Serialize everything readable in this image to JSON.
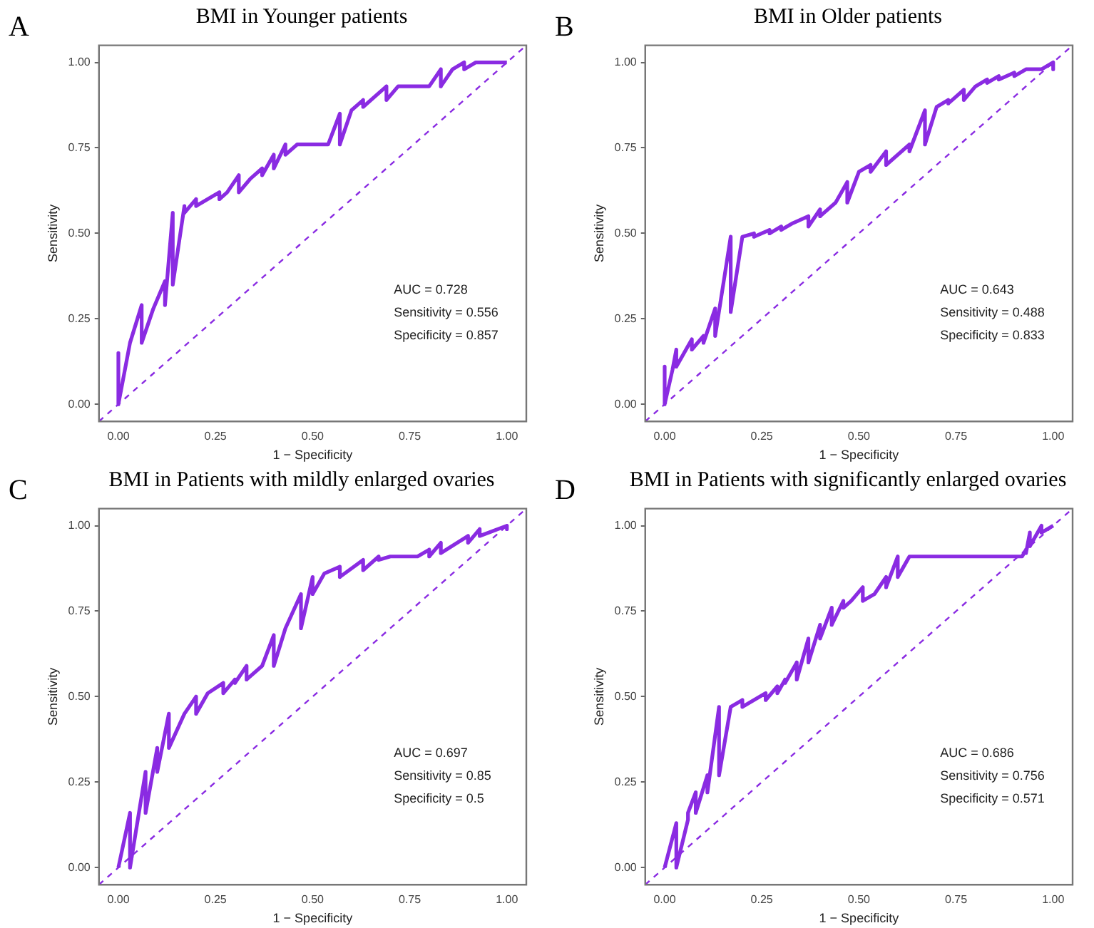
{
  "chart_data": [
    {
      "type": "line",
      "title": "BMI in Younger patients",
      "xlabel": "1 − Specificity",
      "ylabel": "Sensitivity",
      "annotations": [
        "A",
        "AUC = 0.728",
        "Sensitivity = 0.556",
        "Specificity = 0.857"
      ],
      "xlim": [
        -0.05,
        1.05
      ],
      "ylim": [
        -0.05,
        1.05
      ],
      "xticks": [
        {
          "value": 0,
          "label": "0.00"
        },
        {
          "value": 0.25,
          "label": "0.25"
        },
        {
          "value": 0.5,
          "label": "0.50"
        },
        {
          "value": 0.75,
          "label": "0.75"
        },
        {
          "value": 1,
          "label": "1.00"
        }
      ],
      "yticks": [
        {
          "value": 0,
          "label": "0.00"
        },
        {
          "value": 0.25,
          "label": "0.25"
        },
        {
          "value": 0.5,
          "label": "0.50"
        },
        {
          "value": 0.75,
          "label": "0.75"
        },
        {
          "value": 1,
          "label": "1.00"
        }
      ],
      "series": [
        {
          "color": "#8a2be2",
          "x": [
            0,
            0,
            0.03,
            0.03,
            0.06,
            0.06,
            0.09,
            0.12,
            0.12,
            0.14,
            0.14,
            0.17,
            0.17,
            0.2,
            0.2,
            0.26,
            0.26,
            0.28,
            0.31,
            0.31,
            0.34,
            0.37,
            0.37,
            0.4,
            0.4,
            0.43,
            0.43,
            0.46,
            0.54,
            0.57,
            0.57,
            0.6,
            0.63,
            0.63,
            0.69,
            0.69,
            0.72,
            0.8,
            0.83,
            0.83,
            0.86,
            0.89,
            0.89,
            0.92,
            1
          ],
          "values": [
            0.15,
            0,
            0.18,
            0.18,
            0.29,
            0.18,
            0.28,
            0.36,
            0.29,
            0.56,
            0.35,
            0.58,
            0.56,
            0.6,
            0.58,
            0.62,
            0.6,
            0.62,
            0.67,
            0.62,
            0.66,
            0.69,
            0.67,
            0.73,
            0.69,
            0.76,
            0.73,
            0.76,
            0.76,
            0.85,
            0.76,
            0.86,
            0.89,
            0.87,
            0.93,
            0.89,
            0.93,
            0.93,
            0.98,
            0.93,
            0.98,
            1,
            0.98,
            1,
            1
          ]
        },
        {
          "type": "line",
          "color": "#8a2be2",
          "line_style": "dashed",
          "x": [
            -0.05,
            1.05
          ],
          "values": [
            -0.05,
            1.05
          ]
        }
      ]
    },
    {
      "type": "line",
      "title": "BMI in Older patients",
      "xlabel": "1 − Specificity",
      "ylabel": "Sensitivity",
      "annotations": [
        "B",
        "AUC = 0.643",
        "Sensitivity = 0.488",
        "Specificity = 0.833"
      ],
      "xlim": [
        -0.05,
        1.05
      ],
      "ylim": [
        -0.05,
        1.05
      ],
      "xticks": [
        {
          "value": 0,
          "label": "0.00"
        },
        {
          "value": 0.25,
          "label": "0.25"
        },
        {
          "value": 0.5,
          "label": "0.50"
        },
        {
          "value": 0.75,
          "label": "0.75"
        },
        {
          "value": 1,
          "label": "1.00"
        }
      ],
      "yticks": [
        {
          "value": 0,
          "label": "0.00"
        },
        {
          "value": 0.25,
          "label": "0.25"
        },
        {
          "value": 0.5,
          "label": "0.50"
        },
        {
          "value": 0.75,
          "label": "0.75"
        },
        {
          "value": 1,
          "label": "1.00"
        }
      ],
      "series": [
        {
          "color": "#8a2be2",
          "x": [
            0,
            0,
            0.02,
            0.03,
            0.03,
            0.07,
            0.07,
            0.1,
            0.1,
            0.13,
            0.13,
            0.17,
            0.17,
            0.2,
            0.23,
            0.23,
            0.27,
            0.27,
            0.3,
            0.3,
            0.33,
            0.37,
            0.37,
            0.4,
            0.4,
            0.44,
            0.47,
            0.47,
            0.5,
            0.53,
            0.53,
            0.57,
            0.57,
            0.63,
            0.63,
            0.67,
            0.67,
            0.7,
            0.73,
            0.73,
            0.77,
            0.77,
            0.8,
            0.83,
            0.83,
            0.86,
            0.86,
            0.9,
            0.9,
            0.93,
            0.97,
            1,
            1
          ],
          "values": [
            0.11,
            0,
            0.1,
            0.16,
            0.11,
            0.19,
            0.16,
            0.2,
            0.18,
            0.28,
            0.2,
            0.49,
            0.27,
            0.49,
            0.5,
            0.49,
            0.51,
            0.5,
            0.52,
            0.51,
            0.53,
            0.55,
            0.52,
            0.57,
            0.55,
            0.59,
            0.65,
            0.59,
            0.68,
            0.7,
            0.68,
            0.74,
            0.7,
            0.76,
            0.74,
            0.86,
            0.76,
            0.87,
            0.89,
            0.88,
            0.92,
            0.89,
            0.93,
            0.95,
            0.94,
            0.96,
            0.95,
            0.97,
            0.96,
            0.98,
            0.98,
            1,
            0.98
          ]
        },
        {
          "type": "line",
          "color": "#8a2be2",
          "line_style": "dashed",
          "x": [
            -0.05,
            1.05
          ],
          "values": [
            -0.05,
            1.05
          ]
        }
      ]
    },
    {
      "type": "line",
      "title": "BMI in Patients with mildly enlarged ovaries",
      "xlabel": "1 − Specificity",
      "ylabel": "Sensitivity",
      "annotations": [
        "C",
        "AUC = 0.697",
        "Sensitivity = 0.85",
        "Specificity = 0.5"
      ],
      "xlim": [
        -0.05,
        1.05
      ],
      "ylim": [
        -0.05,
        1.05
      ],
      "xticks": [
        {
          "value": 0,
          "label": "0.00"
        },
        {
          "value": 0.25,
          "label": "0.25"
        },
        {
          "value": 0.5,
          "label": "0.50"
        },
        {
          "value": 0.75,
          "label": "0.75"
        },
        {
          "value": 1,
          "label": "1.00"
        }
      ],
      "yticks": [
        {
          "value": 0,
          "label": "0.00"
        },
        {
          "value": 0.25,
          "label": "0.25"
        },
        {
          "value": 0.5,
          "label": "0.50"
        },
        {
          "value": 0.75,
          "label": "0.75"
        },
        {
          "value": 1,
          "label": "1.00"
        }
      ],
      "series": [
        {
          "color": "#8a2be2",
          "x": [
            0,
            0.03,
            0.03,
            0.07,
            0.07,
            0.1,
            0.1,
            0.13,
            0.13,
            0.17,
            0.2,
            0.2,
            0.23,
            0.27,
            0.27,
            0.3,
            0.3,
            0.33,
            0.33,
            0.37,
            0.4,
            0.4,
            0.43,
            0.47,
            0.47,
            0.5,
            0.5,
            0.53,
            0.57,
            0.57,
            0.63,
            0.63,
            0.67,
            0.67,
            0.7,
            0.77,
            0.8,
            0.8,
            0.83,
            0.83,
            0.9,
            0.9,
            0.93,
            0.93,
            1,
            1
          ],
          "values": [
            0,
            0.16,
            0,
            0.28,
            0.16,
            0.35,
            0.28,
            0.45,
            0.35,
            0.45,
            0.5,
            0.45,
            0.51,
            0.54,
            0.51,
            0.55,
            0.54,
            0.59,
            0.55,
            0.59,
            0.68,
            0.59,
            0.7,
            0.8,
            0.7,
            0.85,
            0.8,
            0.86,
            0.88,
            0.85,
            0.9,
            0.87,
            0.91,
            0.9,
            0.91,
            0.91,
            0.93,
            0.91,
            0.95,
            0.92,
            0.97,
            0.95,
            0.99,
            0.97,
            1,
            0.99
          ]
        },
        {
          "type": "line",
          "color": "#8a2be2",
          "line_style": "dashed",
          "x": [
            -0.05,
            1.05
          ],
          "values": [
            -0.05,
            1.05
          ]
        }
      ]
    },
    {
      "type": "line",
      "title": "BMI in Patients with significantly enlarged ovaries",
      "xlabel": "1 − Specificity",
      "ylabel": "Sensitivity",
      "annotations": [
        "D",
        "AUC = 0.686",
        "Sensitivity = 0.756",
        "Specificity = 0.571"
      ],
      "xlim": [
        -0.05,
        1.05
      ],
      "ylim": [
        -0.05,
        1.05
      ],
      "xticks": [
        {
          "value": 0,
          "label": "0.00"
        },
        {
          "value": 0.25,
          "label": "0.25"
        },
        {
          "value": 0.5,
          "label": "0.50"
        },
        {
          "value": 0.75,
          "label": "0.75"
        },
        {
          "value": 1,
          "label": "1.00"
        }
      ],
      "yticks": [
        {
          "value": 0,
          "label": "0.00"
        },
        {
          "value": 0.25,
          "label": "0.25"
        },
        {
          "value": 0.5,
          "label": "0.50"
        },
        {
          "value": 0.75,
          "label": "0.75"
        },
        {
          "value": 1,
          "label": "1.00"
        }
      ],
      "series": [
        {
          "color": "#8a2be2",
          "x": [
            0,
            0.03,
            0.03,
            0.06,
            0.06,
            0.08,
            0.08,
            0.11,
            0.11,
            0.14,
            0.14,
            0.17,
            0.2,
            0.2,
            0.26,
            0.26,
            0.29,
            0.29,
            0.31,
            0.31,
            0.34,
            0.34,
            0.37,
            0.37,
            0.4,
            0.4,
            0.43,
            0.43,
            0.46,
            0.46,
            0.48,
            0.51,
            0.51,
            0.54,
            0.57,
            0.57,
            0.6,
            0.6,
            0.63,
            0.92,
            0.93,
            0.93,
            0.94,
            0.94,
            0.97,
            0.97,
            1
          ],
          "values": [
            0,
            0.13,
            0,
            0.14,
            0.16,
            0.22,
            0.16,
            0.27,
            0.22,
            0.47,
            0.27,
            0.47,
            0.49,
            0.47,
            0.51,
            0.49,
            0.53,
            0.51,
            0.55,
            0.54,
            0.6,
            0.55,
            0.67,
            0.6,
            0.71,
            0.67,
            0.76,
            0.71,
            0.78,
            0.76,
            0.78,
            0.82,
            0.78,
            0.8,
            0.85,
            0.82,
            0.91,
            0.85,
            0.91,
            0.91,
            0.93,
            0.92,
            0.98,
            0.94,
            1,
            0.98,
            1
          ]
        },
        {
          "type": "line",
          "color": "#8a2be2",
          "line_style": "dashed",
          "x": [
            -0.05,
            1.05
          ],
          "values": [
            -0.05,
            1.05
          ]
        }
      ]
    }
  ]
}
